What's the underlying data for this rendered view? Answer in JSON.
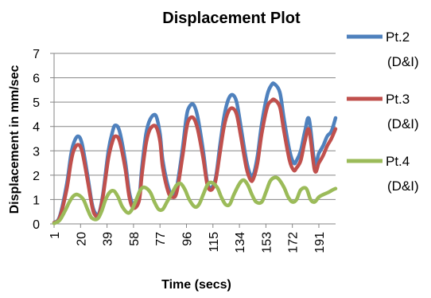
{
  "chart_data": {
    "type": "line",
    "title": "Displacement Plot",
    "xlabel": "Time (secs)",
    "ylabel": "Displacement in  mm/sec",
    "ylim": [
      0,
      7
    ],
    "y_ticks": [
      "0",
      "1",
      "2",
      "3",
      "4",
      "5",
      "6",
      "7"
    ],
    "x_ticks": [
      "1",
      "20",
      "39",
      "58",
      "77",
      "96",
      "115",
      "134",
      "153",
      "172",
      "191"
    ],
    "xlim": [
      1,
      203
    ],
    "grid": "horizontal",
    "legend_position": "right",
    "series": [
      {
        "name": "Pt.2",
        "name_line2": "(D&I)",
        "color": "#4F81BD",
        "x": [
          1,
          5,
          10,
          13,
          15,
          18,
          21,
          25,
          28,
          30,
          33,
          36,
          40,
          43,
          45,
          48,
          52,
          55,
          58,
          62,
          64,
          67,
          70,
          74,
          77,
          79,
          83,
          86,
          89,
          93,
          96,
          98,
          101,
          104,
          108,
          111,
          114,
          117,
          120,
          123,
          126,
          129,
          132,
          135,
          139,
          142,
          144,
          147,
          150,
          154,
          157,
          159,
          163,
          166,
          170,
          173,
          175,
          178,
          181,
          184,
          188,
          191,
          194,
          197,
          200,
          203
        ],
        "values": [
          0.05,
          0.3,
          1.6,
          2.8,
          3.3,
          3.6,
          3.3,
          2.0,
          0.9,
          0.5,
          0.4,
          1.2,
          3.0,
          3.8,
          4.05,
          3.8,
          2.6,
          1.3,
          0.8,
          1.1,
          2.3,
          3.7,
          4.3,
          4.45,
          3.7,
          2.6,
          1.5,
          1.2,
          1.5,
          3.0,
          4.4,
          4.8,
          4.9,
          4.4,
          3.0,
          1.7,
          1.5,
          1.9,
          3.2,
          4.4,
          5.1,
          5.3,
          5.0,
          4.0,
          2.6,
          2.0,
          2.0,
          2.8,
          4.1,
          5.3,
          5.7,
          5.75,
          5.4,
          4.3,
          3.0,
          2.5,
          2.6,
          3.0,
          3.8,
          4.3,
          2.5,
          2.9,
          3.2,
          3.6,
          3.8,
          4.35
        ]
      },
      {
        "name": "Pt.3",
        "name_line2": "(D&I)",
        "color": "#C0504D",
        "x": [
          1,
          5,
          10,
          13,
          15,
          18,
          21,
          25,
          28,
          30,
          33,
          36,
          40,
          43,
          45,
          48,
          52,
          55,
          58,
          62,
          64,
          67,
          70,
          74,
          77,
          79,
          83,
          86,
          89,
          93,
          96,
          98,
          101,
          104,
          108,
          111,
          114,
          117,
          120,
          123,
          126,
          129,
          132,
          135,
          139,
          142,
          144,
          147,
          150,
          154,
          157,
          159,
          163,
          166,
          170,
          173,
          175,
          178,
          181,
          184,
          188,
          191,
          194,
          197,
          200,
          203
        ],
        "values": [
          0.05,
          0.25,
          1.4,
          2.5,
          3.0,
          3.25,
          3.0,
          1.8,
          0.8,
          0.4,
          0.35,
          1.1,
          2.7,
          3.4,
          3.6,
          3.4,
          2.3,
          1.1,
          0.65,
          0.95,
          2.0,
          3.3,
          3.9,
          4.0,
          3.4,
          2.3,
          1.3,
          1.1,
          1.3,
          2.7,
          3.9,
          4.3,
          4.35,
          3.9,
          2.7,
          1.6,
          1.4,
          1.8,
          2.9,
          4.0,
          4.6,
          4.75,
          4.5,
          3.6,
          2.3,
          1.8,
          1.85,
          2.5,
          3.7,
          4.8,
          5.05,
          5.1,
          4.8,
          3.8,
          2.6,
          2.2,
          2.3,
          2.6,
          3.4,
          3.85,
          2.2,
          2.5,
          2.8,
          3.2,
          3.5,
          3.9
        ]
      },
      {
        "name": "Pt.4",
        "name_line2": "(D&I)",
        "color": "#9BBB59",
        "x": [
          1,
          5,
          9,
          12,
          15,
          18,
          22,
          25,
          28,
          32,
          35,
          38,
          41,
          44,
          47,
          50,
          54,
          57,
          60,
          63,
          66,
          70,
          73,
          76,
          79,
          82,
          86,
          89,
          92,
          95,
          98,
          102,
          105,
          108,
          111,
          114,
          118,
          121,
          124,
          127,
          130,
          134,
          137,
          140,
          143,
          146,
          150,
          153,
          156,
          159,
          162,
          166,
          169,
          172,
          175,
          178,
          182,
          185,
          188,
          191,
          194,
          198,
          201,
          203
        ],
        "values": [
          0.02,
          0.15,
          0.55,
          0.9,
          1.15,
          1.2,
          1.0,
          0.6,
          0.25,
          0.2,
          0.5,
          1.0,
          1.3,
          1.35,
          1.1,
          0.7,
          0.45,
          0.6,
          1.0,
          1.4,
          1.5,
          1.3,
          0.9,
          0.6,
          0.6,
          0.9,
          1.3,
          1.6,
          1.65,
          1.4,
          1.0,
          0.7,
          0.8,
          1.2,
          1.6,
          1.7,
          1.5,
          1.1,
          0.8,
          0.8,
          1.2,
          1.65,
          1.8,
          1.6,
          1.2,
          0.9,
          0.9,
          1.3,
          1.75,
          1.9,
          1.85,
          1.5,
          1.1,
          0.9,
          1.0,
          1.4,
          1.45,
          1.0,
          0.9,
          1.1,
          1.2,
          1.3,
          1.4,
          1.45
        ]
      }
    ]
  }
}
